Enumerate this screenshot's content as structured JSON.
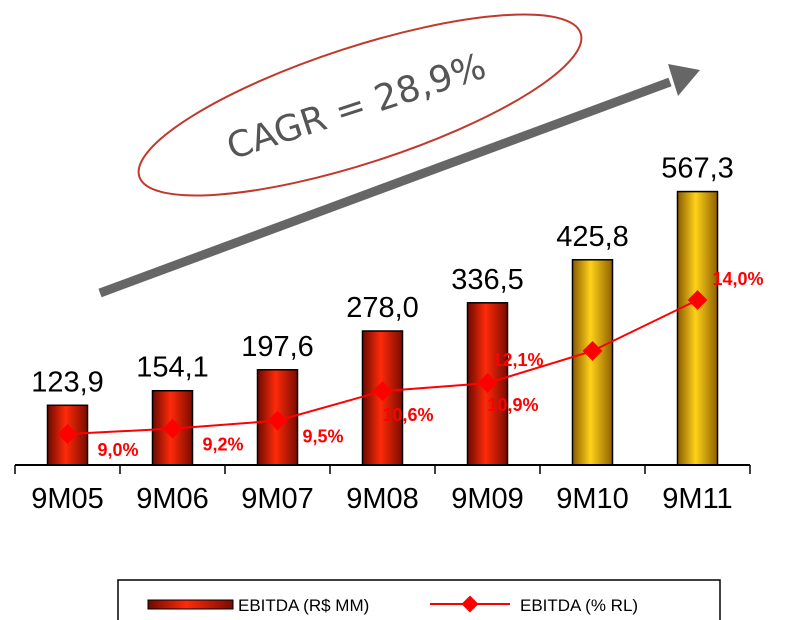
{
  "chart_data": {
    "type": "bar",
    "categories": [
      "9M05",
      "9M06",
      "9M07",
      "9M08",
      "9M09",
      "9M10",
      "9M11"
    ],
    "series": [
      {
        "name": "EBITDA (R$ MM)",
        "type": "bar",
        "values": [
          123.9,
          154.1,
          197.6,
          278.0,
          336.5,
          425.8,
          567.3
        ],
        "labels": [
          "123,9",
          "154,1",
          "197,6",
          "278,0",
          "336,5",
          "425,8",
          "567,3"
        ],
        "colors": [
          "#e8200a",
          "#e8200a",
          "#e8200a",
          "#e8200a",
          "#e8200a",
          "#f2b705",
          "#f2b705"
        ]
      },
      {
        "name": "EBITDA (% RL)",
        "type": "line",
        "values": [
          9.0,
          9.2,
          9.5,
          10.6,
          10.9,
          12.1,
          14.0
        ],
        "labels": [
          "9,0%",
          "9,2%",
          "9,5%",
          "10,6%",
          "10,9%",
          "12,1%",
          "14,0%"
        ],
        "color": "#ff0000"
      }
    ],
    "annotation": "CAGR = 28,9%",
    "legend_position": "bottom",
    "grid": false
  }
}
